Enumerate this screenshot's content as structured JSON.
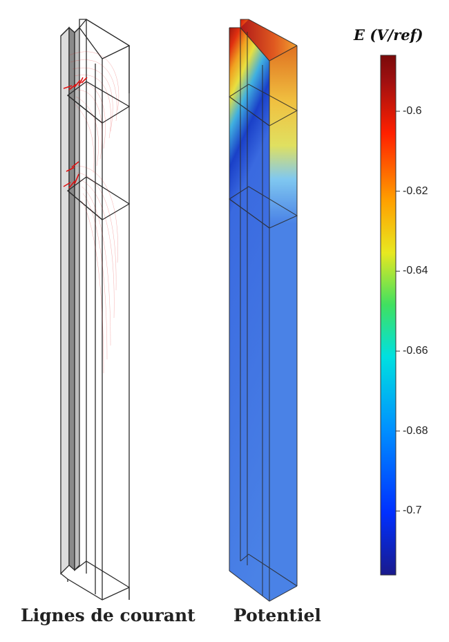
{
  "captions": {
    "left": "Lignes de courant",
    "right": "Potentiel"
  },
  "colorbar": {
    "title": "E (V/ref)",
    "range": [
      -0.716,
      -0.586
    ],
    "ticks": [
      {
        "value": -0.6,
        "label": "-0.6"
      },
      {
        "value": -0.62,
        "label": "-0.62"
      },
      {
        "value": -0.64,
        "label": "-0.64"
      },
      {
        "value": -0.66,
        "label": "-0.66"
      },
      {
        "value": -0.68,
        "label": "-0.68"
      },
      {
        "value": -0.7,
        "label": "-0.7"
      }
    ],
    "colormap": [
      "#1a1a8c",
      "#0030ff",
      "#0090ff",
      "#00e0e0",
      "#40e060",
      "#e8e820",
      "#ffa000",
      "#ff2000",
      "#a01010",
      "#7a0a0a"
    ]
  },
  "colors": {
    "streamline": "#e01010",
    "potential_low": "#4a82e6",
    "outline": "#2a2a2a"
  }
}
